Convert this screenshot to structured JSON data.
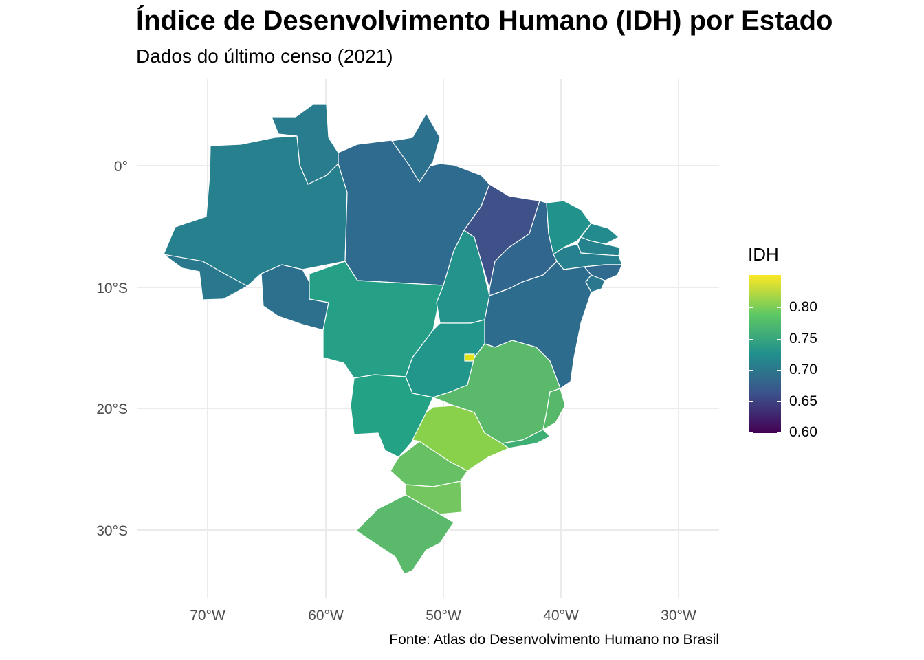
{
  "header": {
    "title": "Índice de Desenvolvimento Humano (IDH) por Estado",
    "subtitle": "Dados do último censo (2021)"
  },
  "caption": "Fonte: Atlas do Desenvolvimento Humano no Brasil",
  "axes": {
    "x_ticks": [
      "70°W",
      "60°W",
      "50°W",
      "40°W",
      "30°W"
    ],
    "y_ticks": [
      "0°",
      "10°S",
      "20°S",
      "30°S"
    ]
  },
  "legend": {
    "title": "IDH",
    "ticks": [
      "0.80",
      "0.75",
      "0.70",
      "0.65",
      "0.60"
    ]
  },
  "colors": {
    "scale": "viridis",
    "low": "#440154",
    "high": "#fde725",
    "border": "#ffffff",
    "grid": "#ebebeb"
  }
}
